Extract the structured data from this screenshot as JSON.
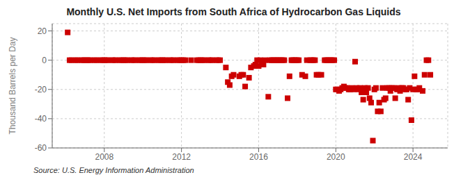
{
  "chart_data": {
    "type": "scatter",
    "title": "Monthly U.S. Net Imports from South Africa of Hydrocarbon Gas Liquids",
    "ylabel": "Thousand Barrels per Day",
    "annotations": [
      "Source: U.S. Energy Information Administration"
    ],
    "color": "#cc0000",
    "marker": "square",
    "grid": true,
    "xlim": [
      2005.3,
      2025.8
    ],
    "xticks": [
      2008,
      2012,
      2016,
      2020,
      2024
    ],
    "ylim": [
      -60,
      25
    ],
    "yticks": [
      -60,
      -40,
      -20,
      0,
      20
    ],
    "x": [
      2006.1,
      2006.2,
      2006.3,
      2006.5,
      2006.6,
      2006.8,
      2006.9,
      2007.0,
      2007.1,
      2007.2,
      2007.3,
      2007.5,
      2007.6,
      2007.8,
      2007.9,
      2008.0,
      2008.1,
      2008.2,
      2008.4,
      2008.5,
      2008.6,
      2008.8,
      2008.9,
      2009.0,
      2009.1,
      2009.2,
      2009.4,
      2009.5,
      2009.6,
      2009.8,
      2009.9,
      2010.0,
      2010.1,
      2010.2,
      2010.4,
      2010.5,
      2010.6,
      2010.8,
      2010.9,
      2011.0,
      2011.1,
      2011.2,
      2011.4,
      2011.5,
      2011.6,
      2011.8,
      2011.9,
      2012.0,
      2012.1,
      2012.2,
      2012.5,
      2012.8,
      2012.9,
      2013.0,
      2013.1,
      2013.2,
      2013.4,
      2013.5,
      2013.6,
      2013.8,
      2013.9,
      2014.0,
      2014.3,
      2014.4,
      2014.5,
      2014.6,
      2014.7,
      2015.0,
      2015.1,
      2015.2,
      2015.3,
      2015.5,
      2015.6,
      2015.75,
      2015.83,
      2015.92,
      2016.0,
      2016.08,
      2016.17,
      2016.25,
      2016.33,
      2016.5,
      2016.58,
      2016.67,
      2016.75,
      2016.83,
      2016.92,
      2017.0,
      2017.08,
      2017.17,
      2017.25,
      2017.33,
      2017.5,
      2017.6,
      2017.7,
      2017.75,
      2017.83,
      2017.92,
      2018.0,
      2018.08,
      2018.25,
      2018.42,
      2018.5,
      2018.67,
      2018.75,
      2018.83,
      2018.92,
      2019.0,
      2019.1,
      2019.25,
      2019.42,
      2019.5,
      2019.58,
      2019.67,
      2019.75,
      2019.83,
      2019.92,
      2020.0,
      2020.08,
      2020.17,
      2020.25,
      2020.33,
      2020.42,
      2020.5,
      2020.58,
      2020.67,
      2020.75,
      2020.83,
      2020.92,
      2021.0,
      2021.08,
      2021.17,
      2021.25,
      2021.33,
      2021.42,
      2021.5,
      2021.58,
      2021.67,
      2021.75,
      2021.83,
      2021.92,
      2022.0,
      2022.08,
      2022.17,
      2022.25,
      2022.33,
      2022.42,
      2022.5,
      2022.58,
      2022.67,
      2022.75,
      2022.83,
      2022.92,
      2023.0,
      2023.08,
      2023.17,
      2023.25,
      2023.33,
      2023.42,
      2023.5,
      2023.58,
      2023.67,
      2023.75,
      2023.83,
      2023.92,
      2024.0,
      2024.08,
      2024.17,
      2024.25,
      2024.33,
      2024.5,
      2024.6,
      2024.7,
      2024.8,
      2024.9
    ],
    "values": [
      19,
      0,
      0,
      0,
      0,
      0,
      0,
      0,
      0,
      0,
      0,
      0,
      0,
      0,
      0,
      0,
      0,
      0,
      0,
      0,
      0,
      0,
      0,
      0,
      0,
      0,
      0,
      0,
      0,
      0,
      0,
      0,
      0,
      0,
      0,
      0,
      0,
      0,
      0,
      0,
      0,
      0,
      0,
      0,
      0,
      0,
      0,
      0,
      0,
      0,
      0,
      0,
      0,
      0,
      0,
      0,
      0,
      0,
      0,
      0,
      0,
      0,
      -5,
      -15,
      -17,
      -11,
      -10,
      -11,
      -10,
      -10,
      -18,
      -12,
      -5,
      -4,
      -3,
      0,
      -4,
      0,
      -2,
      -3,
      0,
      -25,
      0,
      0,
      0,
      0,
      0,
      0,
      0,
      0,
      0,
      0,
      -26,
      -11,
      0,
      0,
      0,
      0,
      0,
      0,
      -10,
      -11,
      0,
      0,
      0,
      0,
      0,
      -10,
      -10,
      -10,
      0,
      0,
      0,
      0,
      0,
      0,
      0,
      -20,
      -20,
      -21,
      -20,
      -19,
      -18,
      -19,
      -19,
      -20,
      -20,
      -19,
      -20,
      -1,
      -19,
      -20,
      -19,
      -22,
      -27,
      -19,
      -22,
      -19,
      -26,
      -29,
      -55,
      -20,
      -19,
      -35,
      -29,
      -35,
      -19,
      -27,
      -26,
      -19,
      -19,
      -21,
      -19,
      -19,
      -26,
      -20,
      -19,
      -21,
      -19,
      -19,
      -20,
      -20,
      -27,
      -19,
      -41,
      -20,
      -11,
      -20,
      -20,
      -19,
      -21,
      -10,
      0,
      0,
      -10
    ]
  }
}
